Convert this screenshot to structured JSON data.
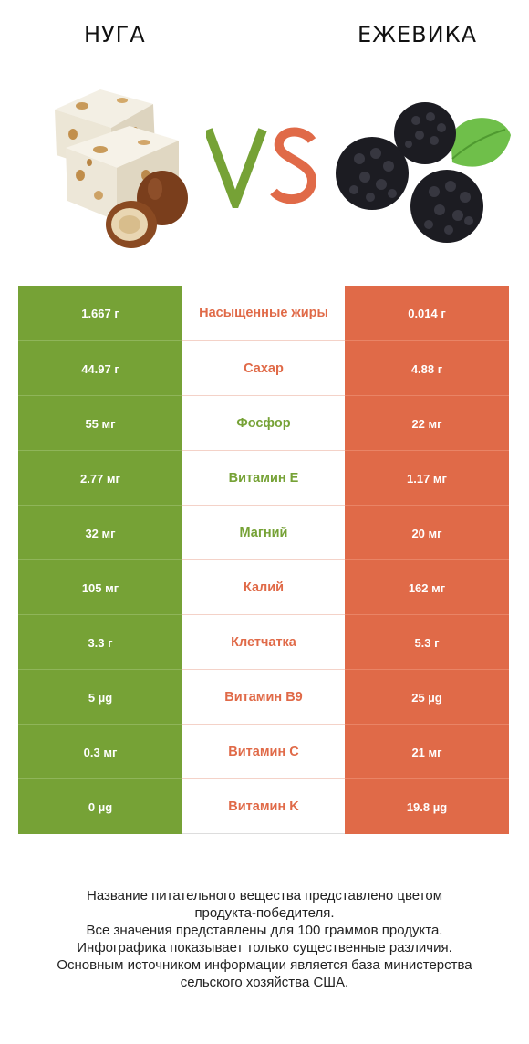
{
  "header": {
    "left_title": "НУГА",
    "right_title": "ЕЖЕВИКА"
  },
  "images": {
    "left_icon": "nougat-with-hazelnuts",
    "right_icon": "blackberries-with-leaf",
    "vs": "VS"
  },
  "colors": {
    "left": "#76a236",
    "right": "#e06a48"
  },
  "rows": [
    {
      "left": "1.667 г",
      "nutrient": "Насыщенные жиры",
      "right": "0.014 г",
      "winner": "right"
    },
    {
      "left": "44.97 г",
      "nutrient": "Сахар",
      "right": "4.88 г",
      "winner": "right"
    },
    {
      "left": "55 мг",
      "nutrient": "Фосфор",
      "right": "22 мг",
      "winner": "left"
    },
    {
      "left": "2.77 мг",
      "nutrient": "Витамин E",
      "right": "1.17 мг",
      "winner": "left"
    },
    {
      "left": "32 мг",
      "nutrient": "Магний",
      "right": "20 мг",
      "winner": "left"
    },
    {
      "left": "105 мг",
      "nutrient": "Калий",
      "right": "162 мг",
      "winner": "right"
    },
    {
      "left": "3.3 г",
      "nutrient": "Клетчатка",
      "right": "5.3 г",
      "winner": "right"
    },
    {
      "left": "5 µg",
      "nutrient": "Витамин B9",
      "right": "25 µg",
      "winner": "right"
    },
    {
      "left": "0.3 мг",
      "nutrient": "Витамин C",
      "right": "21 мг",
      "winner": "right"
    },
    {
      "left": "0 µg",
      "nutrient": "Витамин K",
      "right": "19.8 µg",
      "winner": "right"
    }
  ],
  "footer": {
    "line1": "Название питательного вещества представлено цветом",
    "line2": "продукта-победителя.",
    "line3": "Все значения представлены для 100 граммов продукта.",
    "line4": "Инфографика показывает только существенные различия.",
    "line5": "Основным источником информации является база министерства",
    "line6": "сельского хозяйства США."
  }
}
